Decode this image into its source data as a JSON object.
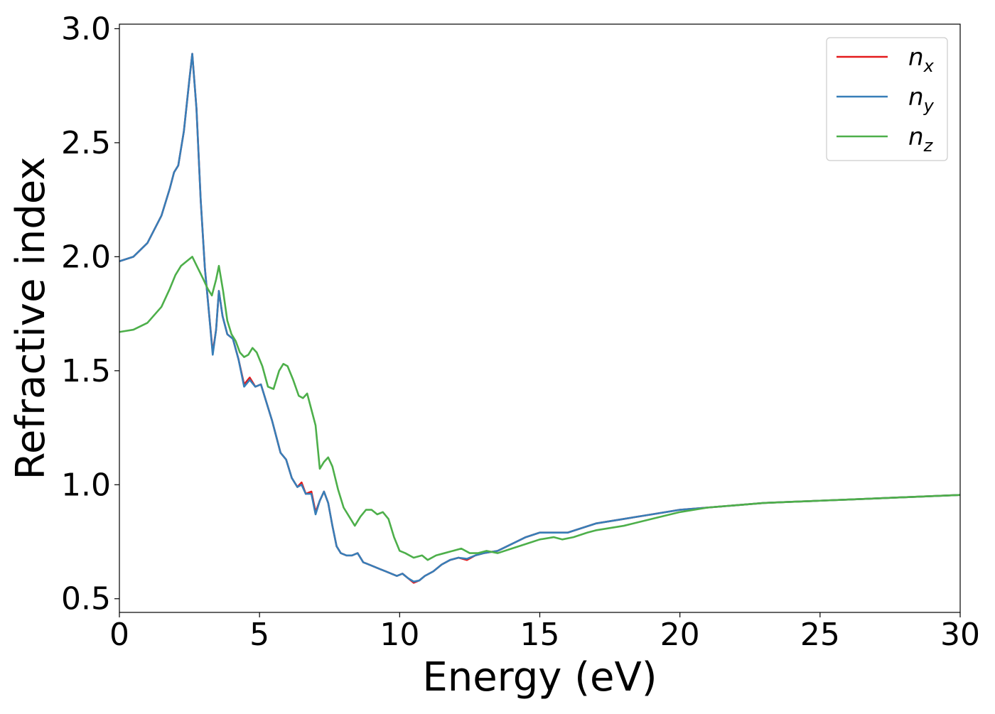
{
  "chart_data": {
    "type": "line",
    "title": "",
    "xlabel": "Energy (eV)",
    "ylabel": "Refractive index",
    "xlim": [
      0,
      30
    ],
    "ylim": [
      0.44,
      3.02
    ],
    "xticks": [
      0,
      5,
      10,
      15,
      20,
      25,
      30
    ],
    "yticks": [
      0.5,
      1.0,
      1.5,
      2.0,
      2.5,
      3.0
    ],
    "xtick_labels": [
      "0",
      "5",
      "10",
      "15",
      "20",
      "25",
      "30"
    ],
    "ytick_labels": [
      "0.5",
      "1.0",
      "1.5",
      "2.0",
      "2.5",
      "3.0"
    ],
    "grid": false,
    "legend": {
      "position": "top-right"
    },
    "series": [
      {
        "name": "n",
        "subscript": "x",
        "color": "#e41a1c",
        "x": [
          0,
          0.5,
          1.0,
          1.5,
          1.8,
          1.95,
          2.1,
          2.3,
          2.5,
          2.6,
          2.75,
          2.9,
          3.05,
          3.2,
          3.33,
          3.45,
          3.55,
          3.68,
          3.85,
          4.05,
          4.25,
          4.45,
          4.65,
          4.85,
          5.05,
          5.25,
          5.45,
          5.6,
          5.75,
          5.95,
          6.15,
          6.35,
          6.5,
          6.65,
          6.85,
          7.0,
          7.15,
          7.3,
          7.45,
          7.6,
          7.75,
          7.9,
          8.1,
          8.3,
          8.5,
          8.7,
          8.9,
          9.1,
          9.3,
          9.5,
          9.7,
          9.9,
          10.1,
          10.3,
          10.5,
          10.7,
          10.9,
          11.2,
          11.5,
          11.8,
          12.1,
          12.4,
          12.7,
          13.0,
          13.5,
          14.0,
          14.5,
          15.0,
          15.3,
          15.6,
          16.0,
          16.5,
          17.0,
          18.0,
          19.0,
          20.0,
          21.0,
          22.0,
          23.0,
          24.0,
          25.0,
          26.0,
          27.0,
          28.0,
          29.0,
          30.0
        ],
        "y": [
          1.98,
          2.0,
          2.06,
          2.18,
          2.3,
          2.37,
          2.4,
          2.55,
          2.78,
          2.89,
          2.65,
          2.25,
          1.95,
          1.75,
          1.58,
          1.68,
          1.85,
          1.74,
          1.66,
          1.64,
          1.55,
          1.44,
          1.47,
          1.43,
          1.44,
          1.36,
          1.28,
          1.21,
          1.14,
          1.11,
          1.03,
          0.99,
          1.01,
          0.96,
          0.97,
          0.88,
          0.93,
          0.97,
          0.92,
          0.82,
          0.73,
          0.7,
          0.69,
          0.69,
          0.7,
          0.66,
          0.65,
          0.64,
          0.63,
          0.62,
          0.61,
          0.6,
          0.61,
          0.59,
          0.57,
          0.58,
          0.6,
          0.62,
          0.65,
          0.67,
          0.68,
          0.67,
          0.69,
          0.7,
          0.71,
          0.74,
          0.77,
          0.79,
          0.79,
          0.79,
          0.79,
          0.81,
          0.83,
          0.85,
          0.87,
          0.89,
          0.9,
          0.91,
          0.92,
          0.925,
          0.93,
          0.935,
          0.94,
          0.945,
          0.95,
          0.955
        ]
      },
      {
        "name": "n",
        "subscript": "y",
        "color": "#377eb8",
        "x": [
          0,
          0.5,
          1.0,
          1.5,
          1.8,
          1.95,
          2.1,
          2.3,
          2.5,
          2.6,
          2.75,
          2.9,
          3.05,
          3.2,
          3.33,
          3.45,
          3.55,
          3.68,
          3.85,
          4.05,
          4.25,
          4.45,
          4.65,
          4.85,
          5.05,
          5.25,
          5.45,
          5.6,
          5.75,
          5.95,
          6.15,
          6.35,
          6.5,
          6.65,
          6.85,
          7.0,
          7.15,
          7.3,
          7.45,
          7.6,
          7.75,
          7.9,
          8.1,
          8.3,
          8.5,
          8.7,
          8.9,
          9.1,
          9.3,
          9.5,
          9.7,
          9.9,
          10.1,
          10.3,
          10.5,
          10.7,
          10.9,
          11.2,
          11.5,
          11.8,
          12.1,
          12.4,
          12.7,
          13.0,
          13.5,
          14.0,
          14.5,
          15.0,
          15.3,
          15.6,
          16.0,
          16.5,
          17.0,
          18.0,
          19.0,
          20.0,
          21.0,
          22.0,
          23.0,
          24.0,
          25.0,
          26.0,
          27.0,
          28.0,
          29.0,
          30.0
        ],
        "y": [
          1.98,
          2.0,
          2.06,
          2.18,
          2.3,
          2.37,
          2.4,
          2.55,
          2.78,
          2.89,
          2.65,
          2.25,
          1.95,
          1.75,
          1.57,
          1.68,
          1.85,
          1.74,
          1.66,
          1.64,
          1.55,
          1.43,
          1.46,
          1.43,
          1.44,
          1.36,
          1.28,
          1.21,
          1.14,
          1.11,
          1.03,
          0.99,
          1.0,
          0.96,
          0.96,
          0.87,
          0.93,
          0.97,
          0.92,
          0.82,
          0.73,
          0.7,
          0.69,
          0.69,
          0.7,
          0.66,
          0.65,
          0.64,
          0.63,
          0.62,
          0.61,
          0.6,
          0.61,
          0.59,
          0.575,
          0.58,
          0.6,
          0.62,
          0.65,
          0.67,
          0.68,
          0.675,
          0.69,
          0.7,
          0.71,
          0.74,
          0.77,
          0.79,
          0.79,
          0.79,
          0.79,
          0.81,
          0.83,
          0.85,
          0.87,
          0.89,
          0.9,
          0.91,
          0.92,
          0.925,
          0.93,
          0.935,
          0.94,
          0.945,
          0.95,
          0.955
        ]
      },
      {
        "name": "n",
        "subscript": "z",
        "color": "#4daf4a",
        "x": [
          0,
          0.5,
          1.0,
          1.5,
          1.8,
          2.0,
          2.2,
          2.4,
          2.6,
          2.8,
          3.0,
          3.15,
          3.3,
          3.45,
          3.55,
          3.7,
          3.85,
          4.0,
          4.15,
          4.3,
          4.45,
          4.6,
          4.75,
          4.9,
          5.1,
          5.3,
          5.5,
          5.7,
          5.85,
          6.0,
          6.2,
          6.4,
          6.55,
          6.7,
          6.85,
          7.0,
          7.15,
          7.3,
          7.45,
          7.6,
          7.8,
          8.0,
          8.2,
          8.4,
          8.6,
          8.8,
          9.0,
          9.2,
          9.4,
          9.6,
          9.8,
          10.0,
          10.2,
          10.5,
          10.8,
          11.0,
          11.3,
          11.6,
          11.9,
          12.2,
          12.5,
          12.8,
          13.1,
          13.5,
          14.0,
          14.5,
          15.0,
          15.5,
          15.8,
          16.2,
          16.7,
          17.0,
          18.0,
          19.0,
          20.0,
          21.0,
          22.0,
          23.0,
          24.0,
          25.0,
          26.0,
          27.0,
          28.0,
          29.0,
          30.0
        ],
        "y": [
          1.67,
          1.68,
          1.71,
          1.78,
          1.86,
          1.92,
          1.96,
          1.98,
          2.0,
          1.95,
          1.9,
          1.86,
          1.83,
          1.9,
          1.96,
          1.85,
          1.72,
          1.66,
          1.63,
          1.58,
          1.56,
          1.57,
          1.6,
          1.58,
          1.52,
          1.43,
          1.42,
          1.5,
          1.53,
          1.52,
          1.46,
          1.39,
          1.38,
          1.4,
          1.33,
          1.26,
          1.07,
          1.1,
          1.12,
          1.08,
          0.98,
          0.9,
          0.86,
          0.82,
          0.86,
          0.89,
          0.89,
          0.87,
          0.88,
          0.85,
          0.77,
          0.71,
          0.7,
          0.68,
          0.69,
          0.67,
          0.69,
          0.7,
          0.71,
          0.72,
          0.7,
          0.7,
          0.71,
          0.7,
          0.72,
          0.74,
          0.76,
          0.77,
          0.76,
          0.77,
          0.79,
          0.8,
          0.82,
          0.85,
          0.88,
          0.9,
          0.91,
          0.92,
          0.925,
          0.93,
          0.935,
          0.94,
          0.945,
          0.95,
          0.955
        ]
      }
    ]
  }
}
